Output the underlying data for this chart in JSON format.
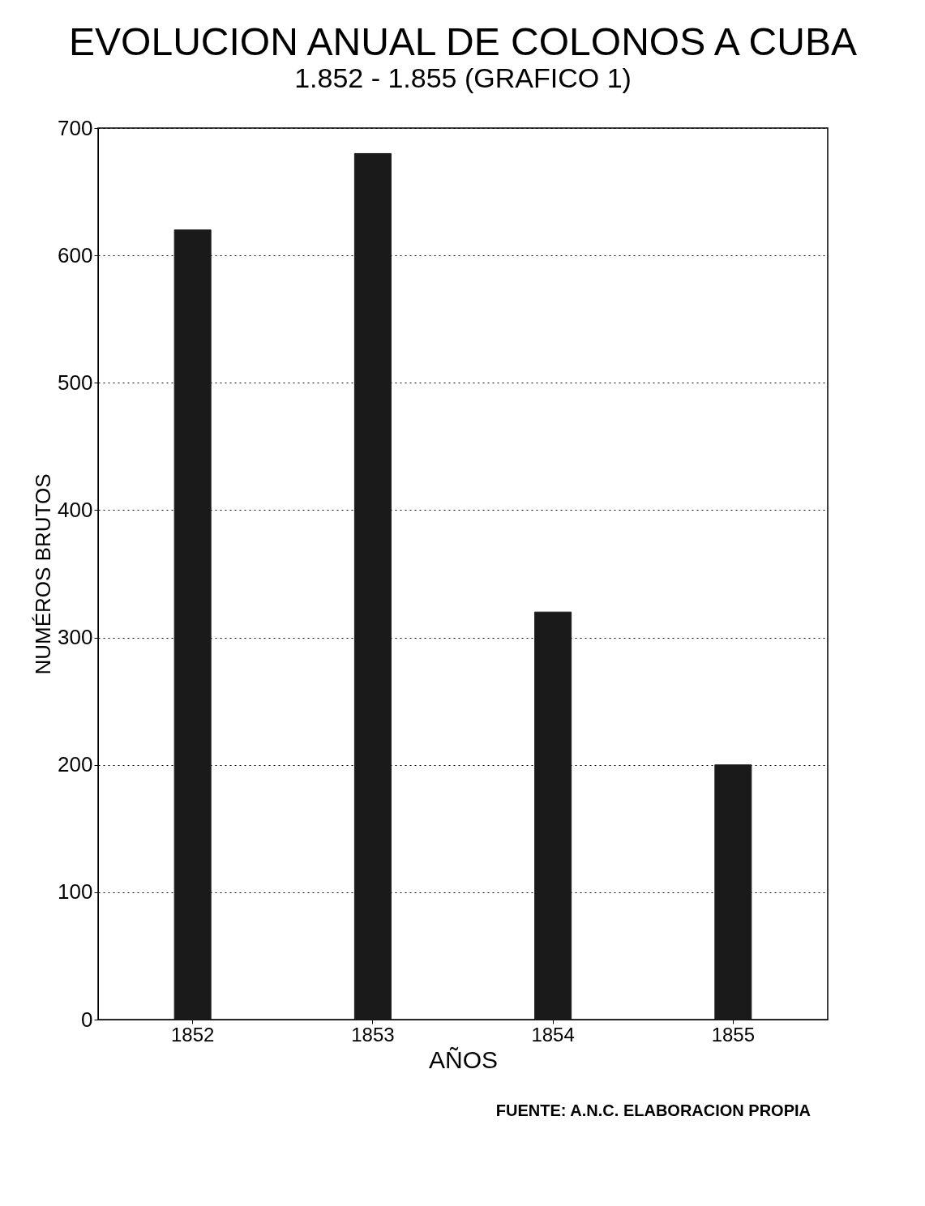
{
  "chart_data": {
    "type": "bar",
    "title": "EVOLUCION ANUAL DE COLONOS A CUBA",
    "subtitle": "1.852 - 1.855 (GRAFICO 1)",
    "xlabel": "AÑOS",
    "ylabel": "NUMÉROS BRUTOS",
    "categories": [
      "1852",
      "1853",
      "1854",
      "1855"
    ],
    "values": [
      620,
      680,
      320,
      200
    ],
    "color": "#1a1a1a",
    "ylim": [
      0,
      700
    ],
    "yticks": [
      0,
      100,
      200,
      300,
      400,
      500,
      600,
      700
    ],
    "grid": "y",
    "annotations": [
      "FUENTE: A.N.C. ELABORACION PROPIA"
    ]
  }
}
